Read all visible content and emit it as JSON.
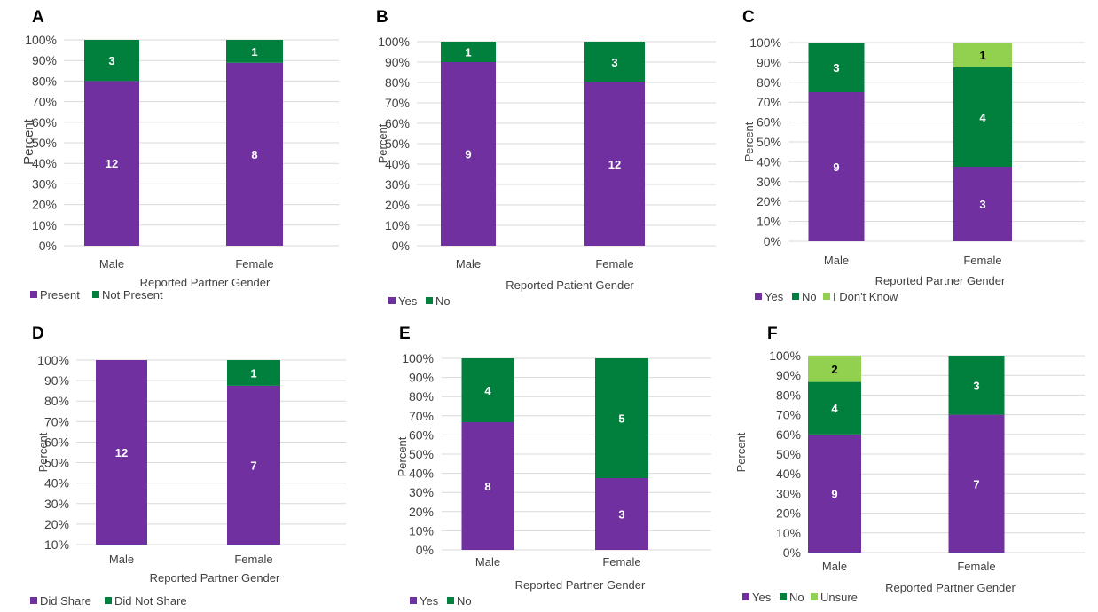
{
  "colors": {
    "Present": "#7030a0",
    "Not Present": "#00803c",
    "Yes": "#7030a0",
    "No": "#00803c",
    "I Don't Know": "#92d050",
    "Unsure": "#92d050",
    "Did Share": "#7030a0",
    "Did Not Share": "#00803c",
    "grid": "#d9d9d9",
    "axis_text": "#404040"
  },
  "chart_data": [
    {
      "panel": "A",
      "type": "bar",
      "stacked": "percent",
      "categories": [
        "Male",
        "Female"
      ],
      "series": [
        {
          "name": "Present",
          "values": [
            12,
            8
          ]
        },
        {
          "name": "Not Present",
          "values": [
            3,
            1
          ]
        }
      ],
      "xlabel": "Reported Partner Gender",
      "ylabel": "Percent",
      "ylim": [
        0,
        100
      ],
      "yticks": [
        "0%",
        "10%",
        "20%",
        "30%",
        "40%",
        "50%",
        "60%",
        "70%",
        "80%",
        "90%",
        "100%"
      ],
      "legend": "bottom-left",
      "grid": true
    },
    {
      "panel": "B",
      "type": "bar",
      "stacked": "percent",
      "categories": [
        "Male",
        "Female"
      ],
      "series": [
        {
          "name": "Yes",
          "values": [
            9,
            12
          ]
        },
        {
          "name": "No",
          "values": [
            1,
            3
          ]
        }
      ],
      "xlabel": "Reported Patient Gender",
      "ylabel": "Percent",
      "ylim": [
        0,
        100
      ],
      "yticks": [
        "0%",
        "10%",
        "20%",
        "30%",
        "40%",
        "50%",
        "60%",
        "70%",
        "80%",
        "90%",
        "100%"
      ],
      "legend": "bottom-left",
      "grid": true
    },
    {
      "panel": "C",
      "type": "bar",
      "stacked": "percent",
      "categories": [
        "Male",
        "Female"
      ],
      "series": [
        {
          "name": "Yes",
          "values": [
            9,
            3
          ]
        },
        {
          "name": "No",
          "values": [
            3,
            4
          ]
        },
        {
          "name": "I Don't Know",
          "values": [
            0,
            1
          ]
        }
      ],
      "xlabel": "Reported Partner Gender",
      "ylabel": "Percent",
      "ylim": [
        0,
        100
      ],
      "yticks": [
        "0%",
        "10%",
        "20%",
        "30%",
        "40%",
        "50%",
        "60%",
        "70%",
        "80%",
        "90%",
        "100%"
      ],
      "legend": "bottom-left",
      "grid": true
    },
    {
      "panel": "D",
      "type": "bar",
      "stacked": "percent",
      "categories": [
        "Male",
        "Female"
      ],
      "series": [
        {
          "name": "Did Share",
          "values": [
            12,
            7
          ]
        },
        {
          "name": "Did Not Share",
          "values": [
            0,
            1
          ]
        }
      ],
      "xlabel": "Reported Partner Gender",
      "ylabel": "Percent",
      "ylim": [
        10,
        100
      ],
      "yticks": [
        "10%",
        "20%",
        "30%",
        "40%",
        "50%",
        "60%",
        "70%",
        "80%",
        "90%",
        "100%"
      ],
      "legend": "bottom-left",
      "grid": true
    },
    {
      "panel": "E",
      "type": "bar",
      "stacked": "percent",
      "categories": [
        "Male",
        "Female"
      ],
      "series": [
        {
          "name": "Yes",
          "values": [
            8,
            3
          ]
        },
        {
          "name": "No",
          "values": [
            4,
            5
          ]
        }
      ],
      "xlabel": "Reported Partner Gender",
      "ylabel": "Percent",
      "ylim": [
        0,
        100
      ],
      "yticks": [
        "0%",
        "10%",
        "20%",
        "30%",
        "40%",
        "50%",
        "60%",
        "70%",
        "80%",
        "90%",
        "100%"
      ],
      "legend": "bottom-left",
      "grid": true
    },
    {
      "panel": "F",
      "type": "bar",
      "stacked": "percent",
      "categories": [
        "Male",
        "Female"
      ],
      "series": [
        {
          "name": "Yes",
          "values": [
            9,
            7
          ]
        },
        {
          "name": "No",
          "values": [
            4,
            3
          ]
        },
        {
          "name": "Unsure",
          "values": [
            2,
            0
          ]
        }
      ],
      "xlabel": "Reported Partner Gender",
      "ylabel": "Percent",
      "ylim": [
        0,
        100
      ],
      "yticks": [
        "0%",
        "10%",
        "20%",
        "30%",
        "40%",
        "50%",
        "60%",
        "70%",
        "80%",
        "90%",
        "100%"
      ],
      "legend": "bottom-left",
      "grid": true
    }
  ]
}
